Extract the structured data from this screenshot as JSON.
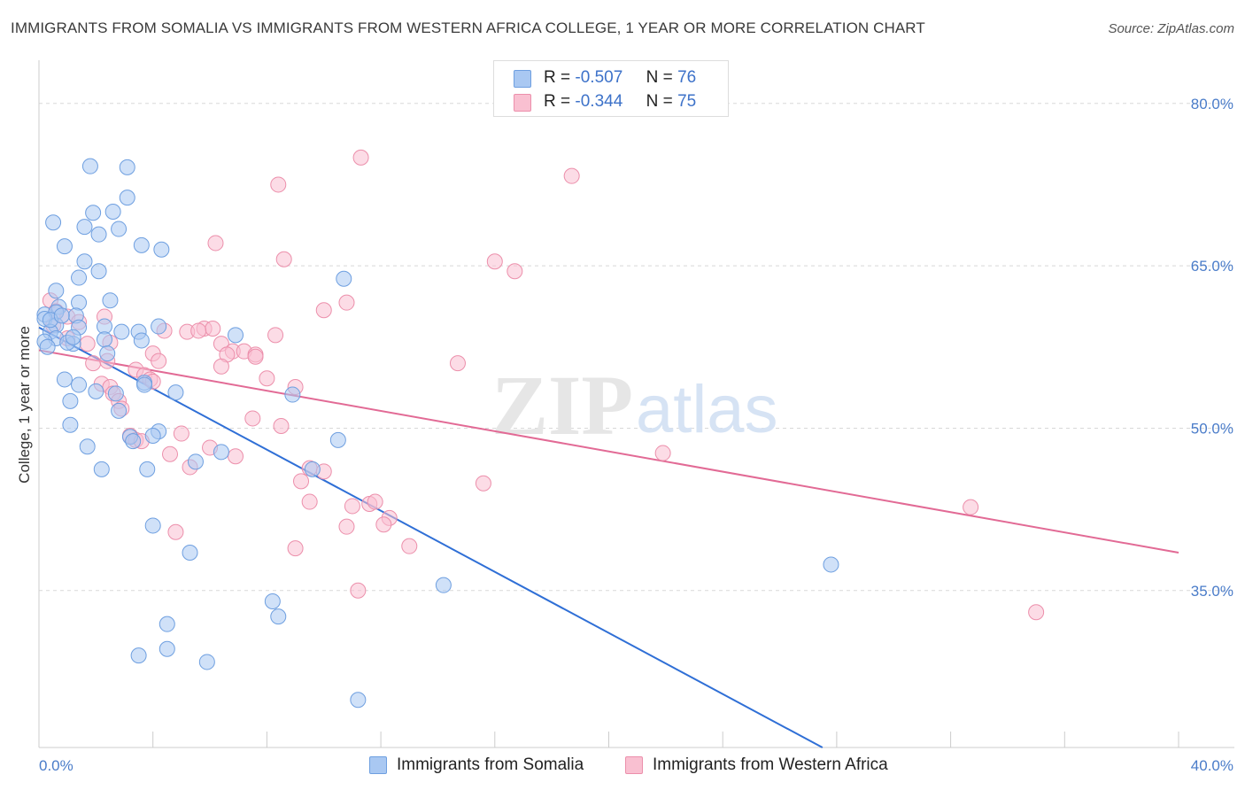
{
  "header": {
    "title": "IMMIGRANTS FROM SOMALIA VS IMMIGRANTS FROM WESTERN AFRICA COLLEGE, 1 YEAR OR MORE CORRELATION CHART",
    "source": "Source: ZipAtlas.com"
  },
  "legend": {
    "r_label": "R =",
    "n_label": "N =",
    "rows": [
      {
        "r": "-0.507",
        "n": "76",
        "color": "#a9c8f2",
        "edge": "#6e9fe0"
      },
      {
        "r": "-0.344",
        "n": "75",
        "color": "#f9c0d1",
        "edge": "#ec8fab"
      }
    ]
  },
  "bottom_legend": [
    {
      "label": "Immigrants from Somalia",
      "color": "#a9c8f2",
      "edge": "#6e9fe0"
    },
    {
      "label": "Immigrants from Western Africa",
      "color": "#f9c0d1",
      "edge": "#ec8fab"
    }
  ],
  "watermark": {
    "zip": "ZIP",
    "atlas": "atlas"
  },
  "chart_data": {
    "type": "scatter",
    "xlabel": "",
    "ylabel": "College, 1 year or more",
    "xlim": [
      0,
      40
    ],
    "ylim": [
      20.5,
      83.5
    ],
    "x_tick_labels": [
      {
        "value": 0,
        "label": "0.0%"
      },
      {
        "value": 40,
        "label": "40.0%"
      }
    ],
    "y_tick_labels": [
      {
        "value": 35,
        "label": "35.0%"
      },
      {
        "value": 50,
        "label": "50.0%"
      },
      {
        "value": 65,
        "label": "65.0%"
      },
      {
        "value": 80,
        "label": "80.0%"
      }
    ],
    "grid": "horizontal dashed",
    "series": [
      {
        "name": "Immigrants from Somalia",
        "color": "#6e9fe0",
        "fill": "#a9c8f2",
        "line_color": "#2f6fd6",
        "trend": {
          "x": [
            0,
            27.5
          ],
          "y": [
            59.3,
            20.5
          ]
        },
        "points": [
          [
            1.8,
            74.2
          ],
          [
            3.1,
            74.1
          ],
          [
            3.1,
            71.3
          ],
          [
            1.9,
            69.9
          ],
          [
            2.6,
            70.0
          ],
          [
            0.5,
            69.0
          ],
          [
            1.6,
            68.6
          ],
          [
            2.1,
            67.9
          ],
          [
            2.8,
            68.4
          ],
          [
            0.9,
            66.8
          ],
          [
            3.6,
            66.9
          ],
          [
            4.3,
            66.5
          ],
          [
            1.6,
            65.4
          ],
          [
            2.1,
            64.5
          ],
          [
            1.4,
            63.9
          ],
          [
            10.7,
            63.8
          ],
          [
            0.6,
            62.7
          ],
          [
            1.4,
            61.6
          ],
          [
            2.5,
            61.8
          ],
          [
            0.7,
            61.2
          ],
          [
            0.2,
            60.5
          ],
          [
            0.6,
            60.7
          ],
          [
            1.3,
            60.4
          ],
          [
            0.2,
            60.1
          ],
          [
            0.6,
            59.5
          ],
          [
            1.4,
            59.3
          ],
          [
            2.3,
            59.4
          ],
          [
            4.2,
            59.4
          ],
          [
            3.5,
            58.9
          ],
          [
            0.4,
            58.9
          ],
          [
            6.9,
            58.6
          ],
          [
            0.6,
            58.3
          ],
          [
            2.3,
            58.2
          ],
          [
            3.6,
            58.1
          ],
          [
            0.2,
            58.0
          ],
          [
            1.2,
            57.8
          ],
          [
            2.4,
            56.9
          ],
          [
            0.9,
            54.5
          ],
          [
            1.4,
            54.0
          ],
          [
            3.7,
            54.2
          ],
          [
            4.8,
            53.3
          ],
          [
            2.0,
            53.4
          ],
          [
            2.7,
            53.2
          ],
          [
            1.1,
            52.5
          ],
          [
            2.8,
            51.6
          ],
          [
            1.1,
            50.3
          ],
          [
            4.2,
            49.7
          ],
          [
            10.5,
            48.9
          ],
          [
            3.2,
            49.2
          ],
          [
            3.3,
            48.8
          ],
          [
            1.7,
            48.3
          ],
          [
            4.0,
            49.3
          ],
          [
            6.4,
            47.8
          ],
          [
            5.5,
            46.9
          ],
          [
            2.2,
            46.2
          ],
          [
            3.8,
            46.2
          ],
          [
            9.6,
            46.2
          ],
          [
            4.0,
            41.0
          ],
          [
            5.3,
            38.5
          ],
          [
            27.8,
            37.4
          ],
          [
            14.2,
            35.5
          ],
          [
            8.2,
            34.0
          ],
          [
            8.4,
            32.6
          ],
          [
            4.5,
            31.9
          ],
          [
            4.5,
            29.6
          ],
          [
            3.5,
            29.0
          ],
          [
            5.9,
            28.4
          ],
          [
            11.2,
            24.9
          ],
          [
            8.9,
            53.1
          ],
          [
            3.7,
            54.0
          ],
          [
            0.3,
            57.5
          ],
          [
            1.0,
            57.9
          ],
          [
            2.9,
            58.9
          ],
          [
            0.4,
            60.0
          ],
          [
            0.8,
            60.4
          ],
          [
            1.2,
            58.4
          ]
        ]
      },
      {
        "name": "Immigrants from Western Africa",
        "color": "#ec8fab",
        "fill": "#f9c0d1",
        "line_color": "#e26a95",
        "trend": {
          "x": [
            0,
            40
          ],
          "y": [
            57.2,
            38.5
          ]
        },
        "points": [
          [
            11.3,
            75.0
          ],
          [
            18.7,
            73.3
          ],
          [
            8.4,
            72.5
          ],
          [
            6.2,
            67.1
          ],
          [
            8.6,
            65.6
          ],
          [
            16.0,
            65.4
          ],
          [
            16.7,
            64.5
          ],
          [
            0.4,
            61.8
          ],
          [
            10.8,
            61.6
          ],
          [
            10.0,
            60.9
          ],
          [
            0.6,
            60.8
          ],
          [
            1.0,
            60.3
          ],
          [
            2.3,
            60.3
          ],
          [
            1.4,
            59.8
          ],
          [
            0.5,
            59.5
          ],
          [
            4.4,
            59.0
          ],
          [
            5.8,
            59.2
          ],
          [
            6.1,
            59.2
          ],
          [
            5.2,
            58.9
          ],
          [
            5.6,
            59.0
          ],
          [
            8.3,
            58.6
          ],
          [
            1.0,
            58.3
          ],
          [
            1.7,
            57.8
          ],
          [
            2.5,
            57.9
          ],
          [
            6.4,
            57.8
          ],
          [
            6.8,
            57.1
          ],
          [
            7.2,
            57.1
          ],
          [
            6.6,
            56.8
          ],
          [
            7.6,
            56.8
          ],
          [
            7.6,
            56.6
          ],
          [
            4.0,
            56.9
          ],
          [
            14.7,
            56.0
          ],
          [
            4.2,
            56.2
          ],
          [
            1.9,
            56.0
          ],
          [
            2.4,
            56.2
          ],
          [
            6.4,
            55.7
          ],
          [
            3.4,
            55.4
          ],
          [
            3.7,
            54.9
          ],
          [
            8.0,
            54.6
          ],
          [
            3.9,
            54.5
          ],
          [
            9.0,
            53.8
          ],
          [
            2.2,
            54.1
          ],
          [
            4.0,
            54.3
          ],
          [
            2.5,
            53.8
          ],
          [
            2.6,
            53.2
          ],
          [
            2.8,
            52.5
          ],
          [
            2.9,
            51.8
          ],
          [
            7.5,
            50.9
          ],
          [
            8.5,
            50.2
          ],
          [
            5.0,
            49.5
          ],
          [
            3.2,
            49.3
          ],
          [
            3.4,
            48.9
          ],
          [
            3.6,
            48.8
          ],
          [
            6.0,
            48.2
          ],
          [
            4.6,
            47.6
          ],
          [
            21.9,
            47.7
          ],
          [
            6.9,
            47.4
          ],
          [
            5.3,
            46.4
          ],
          [
            9.5,
            46.3
          ],
          [
            10.0,
            46.0
          ],
          [
            9.2,
            45.1
          ],
          [
            15.6,
            44.9
          ],
          [
            9.5,
            43.2
          ],
          [
            11.0,
            42.8
          ],
          [
            11.6,
            43.0
          ],
          [
            11.8,
            43.2
          ],
          [
            32.7,
            42.7
          ],
          [
            12.3,
            41.7
          ],
          [
            12.1,
            41.1
          ],
          [
            10.8,
            40.9
          ],
          [
            4.8,
            40.4
          ],
          [
            13.0,
            39.1
          ],
          [
            9.0,
            38.9
          ],
          [
            11.2,
            35.0
          ],
          [
            35.0,
            33.0
          ]
        ]
      }
    ]
  }
}
